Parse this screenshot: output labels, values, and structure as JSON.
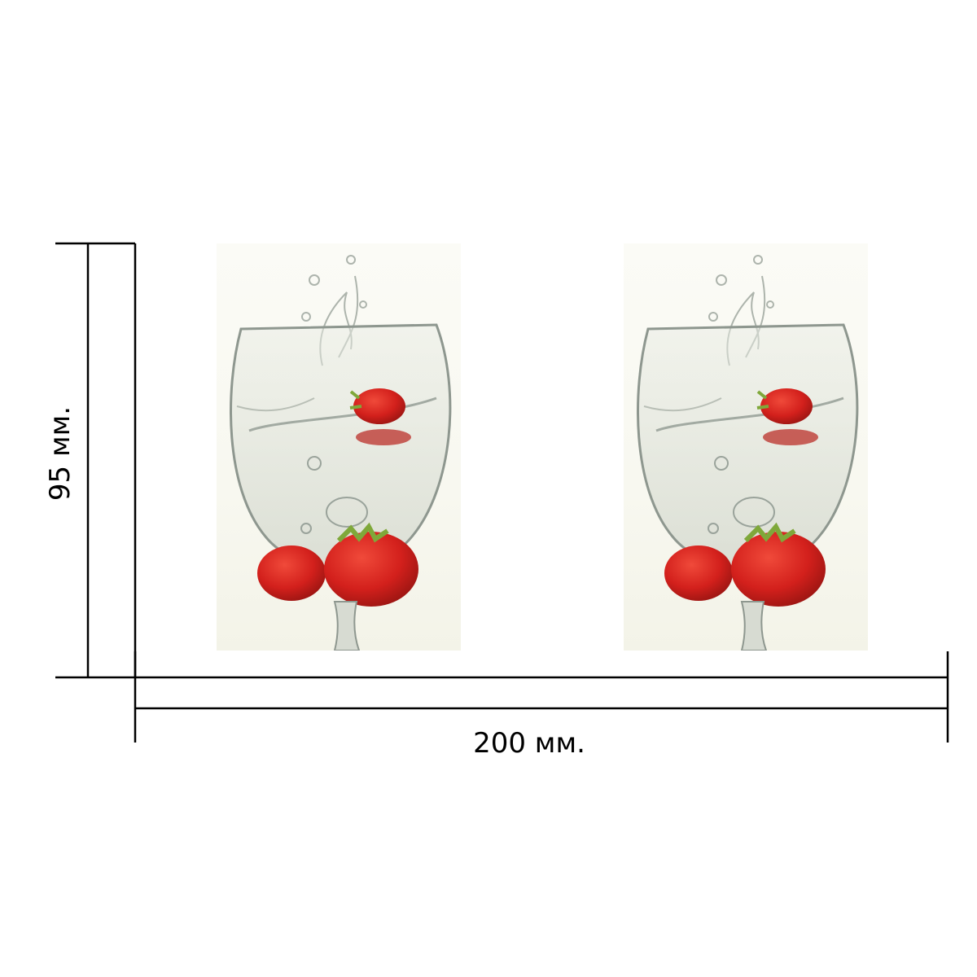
{
  "dimensions": {
    "width_label": "200 мм.",
    "height_label": "95 мм."
  },
  "product": {
    "panels": [
      {
        "icon": "wine-glass-strawberries-photo"
      },
      {
        "icon": "wine-glass-strawberries-photo"
      }
    ]
  },
  "colors": {
    "line": "#000000",
    "strawberry": "#d3201c",
    "leaf": "#7fa83a",
    "background": "#ffffff"
  }
}
